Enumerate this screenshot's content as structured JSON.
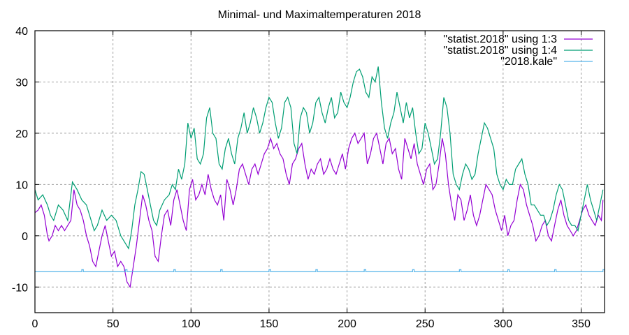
{
  "chart_data": {
    "type": "line",
    "title": "Minimal- und Maximaltemperaturen 2018",
    "xlabel": "",
    "ylabel": "",
    "xlim": [
      0,
      365
    ],
    "ylim": [
      -15,
      40
    ],
    "grid": true,
    "legend_position": "top-right",
    "x_ticks": [
      0,
      50,
      100,
      150,
      200,
      250,
      300,
      350
    ],
    "y_ticks": [
      -10,
      0,
      10,
      20,
      30,
      40
    ],
    "x_tick_labels": [
      "0",
      "50",
      "100",
      "150",
      "200",
      "250",
      "300",
      "350"
    ],
    "y_tick_labels": [
      "-10",
      "0",
      "10",
      "20",
      "30",
      "40"
    ],
    "series": [
      {
        "name": "\"statist.2018\" using 1:3",
        "color": "#9400d3",
        "x": [
          0,
          2,
          4,
          6,
          8,
          9,
          11,
          13,
          15,
          17,
          19,
          21,
          23,
          25,
          27,
          29,
          31,
          33,
          35,
          37,
          39,
          41,
          43,
          45,
          47,
          49,
          51,
          53,
          55,
          57,
          59,
          61,
          63,
          65,
          67,
          69,
          71,
          73,
          75,
          77,
          79,
          81,
          83,
          85,
          87,
          89,
          91,
          93,
          95,
          97,
          99,
          101,
          103,
          105,
          107,
          109,
          111,
          113,
          115,
          117,
          119,
          121,
          123,
          125,
          127,
          129,
          131,
          133,
          135,
          137,
          139,
          141,
          143,
          145,
          147,
          149,
          151,
          153,
          155,
          157,
          159,
          161,
          163,
          165,
          167,
          169,
          171,
          173,
          175,
          177,
          179,
          181,
          183,
          185,
          187,
          189,
          191,
          193,
          195,
          197,
          199,
          201,
          203,
          205,
          207,
          209,
          211,
          213,
          215,
          217,
          219,
          221,
          223,
          225,
          227,
          229,
          231,
          233,
          235,
          237,
          239,
          241,
          243,
          245,
          247,
          249,
          251,
          253,
          255,
          257,
          259,
          261,
          263,
          265,
          267,
          269,
          271,
          273,
          275,
          277,
          279,
          281,
          283,
          285,
          287,
          289,
          291,
          293,
          295,
          297,
          299,
          301,
          303,
          305,
          307,
          309,
          311,
          313,
          315,
          317,
          319,
          321,
          323,
          325,
          327,
          329,
          331,
          333,
          335,
          337,
          339,
          341,
          343,
          345,
          347,
          349,
          351,
          353,
          355,
          357,
          359,
          361,
          363,
          364
        ],
        "values": [
          4.5,
          5,
          6,
          4,
          0,
          -1,
          0,
          2,
          1,
          2,
          1,
          2,
          3,
          9,
          6,
          5,
          3,
          0,
          -2,
          -5,
          -6,
          -3,
          0,
          2,
          -1,
          -4,
          -3,
          -6,
          -5,
          -6,
          -9,
          -10,
          -6,
          -2,
          3,
          8,
          6,
          3,
          1,
          -4,
          -5,
          0,
          4,
          5,
          2,
          7,
          9,
          6,
          3,
          1,
          9,
          11,
          7,
          8,
          10,
          8,
          12,
          9,
          7,
          6,
          8,
          3,
          11,
          9,
          6,
          9,
          13,
          14,
          12,
          10,
          13,
          14,
          12,
          14,
          16,
          17,
          19,
          17,
          18,
          16,
          15,
          12,
          10,
          14,
          15,
          17,
          18,
          14,
          11,
          13,
          12,
          14,
          15,
          12,
          13,
          15,
          13,
          12,
          14,
          16,
          13,
          17,
          19,
          20,
          18,
          19,
          20,
          14,
          16,
          19,
          20,
          17,
          14,
          18,
          19,
          16,
          17,
          13,
          11,
          19,
          17,
          15,
          18,
          14,
          12,
          10,
          13,
          14,
          9,
          10,
          14,
          19,
          16,
          10,
          6,
          3,
          8,
          7,
          3,
          5,
          8,
          4,
          2,
          4,
          7,
          10,
          9,
          8,
          5,
          3,
          1,
          4,
          0,
          2,
          3,
          7,
          10,
          9,
          6,
          4,
          2,
          -1,
          0,
          2,
          3,
          0,
          -1,
          2,
          5,
          7,
          4,
          2,
          1,
          0,
          1,
          3,
          5,
          6,
          4,
          3,
          2,
          4,
          3,
          7
        ]
      },
      {
        "name": "\"statist.2018\" using 1:4",
        "color": "#009e73",
        "x": [
          0,
          2,
          5,
          8,
          10,
          12,
          15,
          18,
          21,
          24,
          27,
          30,
          33,
          36,
          38,
          40,
          43,
          46,
          49,
          52,
          55,
          58,
          60,
          62,
          64,
          66,
          68,
          70,
          72,
          74,
          76,
          78,
          80,
          83,
          86,
          88,
          90,
          92,
          94,
          96,
          98,
          100,
          102,
          104,
          106,
          108,
          110,
          112,
          114,
          116,
          118,
          120,
          122,
          124,
          126,
          128,
          130,
          132,
          134,
          136,
          138,
          140,
          142,
          144,
          146,
          148,
          150,
          152,
          154,
          156,
          158,
          160,
          162,
          164,
          166,
          168,
          170,
          172,
          174,
          176,
          178,
          180,
          182,
          184,
          186,
          188,
          190,
          192,
          194,
          196,
          198,
          200,
          202,
          204,
          206,
          208,
          210,
          212,
          214,
          216,
          218,
          220,
          222,
          224,
          226,
          228,
          230,
          232,
          234,
          236,
          238,
          240,
          242,
          244,
          246,
          248,
          250,
          252,
          254,
          256,
          258,
          260,
          262,
          264,
          266,
          268,
          270,
          272,
          274,
          276,
          278,
          280,
          282,
          284,
          286,
          288,
          290,
          292,
          294,
          296,
          298,
          300,
          302,
          304,
          306,
          308,
          310,
          312,
          314,
          316,
          318,
          320,
          322,
          324,
          326,
          328,
          330,
          332,
          334,
          336,
          338,
          340,
          342,
          344,
          346,
          348,
          350,
          352,
          354,
          356,
          358,
          360,
          362,
          364
        ],
        "values": [
          9,
          7,
          8,
          6,
          4,
          3,
          6,
          5,
          3,
          10.5,
          9,
          7,
          6,
          3,
          1,
          2,
          5,
          3,
          4,
          3,
          0,
          -1.5,
          -2.5,
          1,
          6,
          9,
          12.5,
          12,
          9,
          6,
          3,
          2,
          5,
          7,
          8,
          10,
          9,
          13,
          11,
          14,
          22,
          19,
          21,
          15,
          14,
          16,
          23,
          25,
          20,
          19,
          14,
          13,
          17,
          19,
          16,
          14,
          19,
          21,
          24,
          20,
          22,
          25,
          23,
          20,
          22,
          25,
          27,
          26,
          22,
          19,
          21,
          26,
          27,
          25,
          18,
          16,
          23,
          25,
          24,
          20,
          22,
          26,
          27,
          24,
          22,
          25,
          27,
          23,
          24,
          28,
          26,
          25,
          27,
          30,
          32,
          32.5,
          31,
          28,
          27,
          31,
          30,
          33,
          26,
          21,
          19,
          22,
          24,
          28,
          25,
          22,
          26,
          23,
          25,
          20,
          16,
          17,
          22,
          20,
          17,
          14,
          15,
          20,
          27,
          25,
          20,
          12,
          10,
          9,
          12,
          14,
          13,
          11,
          12,
          16,
          19,
          22,
          21,
          19,
          17,
          12,
          10,
          9,
          11,
          10,
          10,
          13,
          14,
          15,
          12,
          10,
          6,
          6,
          5,
          4,
          4,
          2,
          3,
          5,
          8,
          10,
          9,
          6,
          3,
          2,
          2,
          1,
          4,
          7,
          10,
          7,
          5,
          3,
          6,
          9
        ]
      },
      {
        "name": "\"2018.kale\"",
        "color": "#56b4e9",
        "baseline": -7,
        "spike_value": -6.6,
        "spike_days": [
          30,
          58,
          89,
          119,
          150,
          180,
          211,
          242,
          272,
          303,
          333,
          364
        ]
      }
    ]
  }
}
